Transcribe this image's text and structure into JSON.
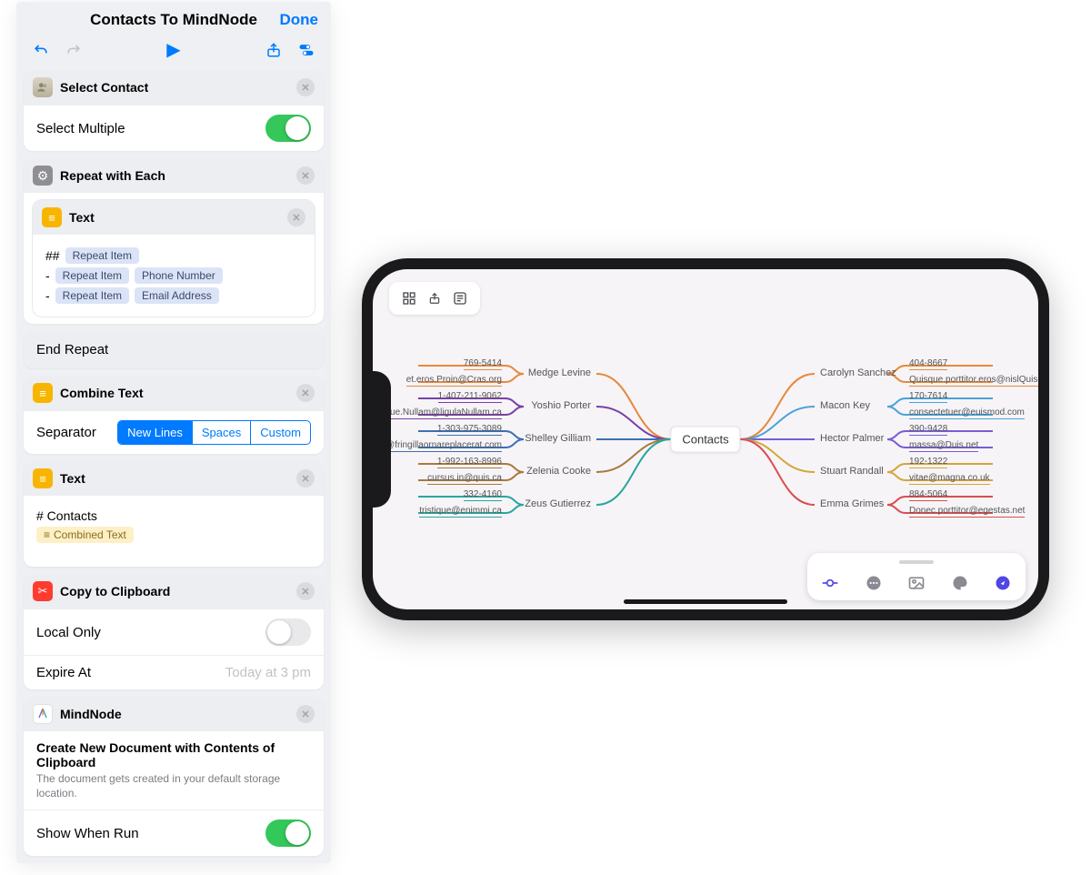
{
  "header": {
    "title": "Contacts To MindNode",
    "done": "Done"
  },
  "actions": {
    "selectContact": {
      "title": "Select Contact",
      "optionLabel": "Select Multiple",
      "toggleOn": true
    },
    "repeat": {
      "title": "Repeat with Each",
      "endLabel": "End Repeat",
      "textAction": {
        "title": "Text",
        "prefixHash": "##",
        "prefixDash": "-",
        "tokens": {
          "repeatItem": "Repeat Item",
          "phoneNumber": "Phone Number",
          "emailAddress": "Email Address"
        }
      }
    },
    "combine": {
      "title": "Combine Text",
      "separatorLabel": "Separator",
      "segments": {
        "a": "New Lines",
        "b": "Spaces",
        "c": "Custom"
      }
    },
    "textContacts": {
      "title": "Text",
      "heading": "# Contacts",
      "combinedToken": "Combined Text"
    },
    "clipboard": {
      "title": "Copy to Clipboard",
      "localOnlyLabel": "Local Only",
      "localOnlyOn": false,
      "expireLabel": "Expire At",
      "expireValue": "Today at 3 pm"
    },
    "mindnode": {
      "title": "MindNode",
      "heading": "Create New Document with Contents of Clipboard",
      "sub": "The document gets created in your default storage location.",
      "showWhenRunLabel": "Show When Run",
      "showWhenRunOn": true
    }
  },
  "mindmap": {
    "center": "Contacts",
    "colors": {
      "orange": "#e8893a",
      "purple": "#7a3fa8",
      "blue": "#3d6fb4",
      "brown": "#a87a3d",
      "teal": "#2aa6a0",
      "orange2": "#e8893a",
      "sky": "#4aa3d8",
      "violet": "#7b5cd6",
      "gold": "#d6a53a",
      "red": "#d94f4f"
    },
    "left": [
      {
        "name": "Medge Levine",
        "color": "orange",
        "phone": "769-5414",
        "email": "et.eros.Proin@Cras.org"
      },
      {
        "name": "Yoshio Porter",
        "color": "purple",
        "phone": "1-407-211-9062",
        "email": "neque.Nullam@ligulaNullam.ca"
      },
      {
        "name": "Shelley Gilliam",
        "color": "blue",
        "phone": "1-303-975-3089",
        "email": "luctus.felis.purus@fringillaornareplacerat.com"
      },
      {
        "name": "Zelenia Cooke",
        "color": "brown",
        "phone": "1-992-163-8996",
        "email": "cursus.in@quis.ca"
      },
      {
        "name": "Zeus Gutierrez",
        "color": "teal",
        "phone": "332-4160",
        "email": "tristique@enimmi.ca"
      }
    ],
    "right": [
      {
        "name": "Carolyn Sanchez",
        "color": "orange2",
        "phone": "404-8667",
        "email": "Quisque.porttitor.eros@nislQuisque.net"
      },
      {
        "name": "Macon Key",
        "color": "sky",
        "phone": "170-7614",
        "email": "consectetuer@euismod.com"
      },
      {
        "name": "Hector Palmer",
        "color": "violet",
        "phone": "390-9428",
        "email": "massa@Duis.net"
      },
      {
        "name": "Stuart Randall",
        "color": "gold",
        "phone": "192-1322",
        "email": "vitae@magna.co.uk"
      },
      {
        "name": "Emma Grimes",
        "color": "red",
        "phone": "884-5064",
        "email": "Donec.porttitor@egestas.net"
      }
    ]
  }
}
